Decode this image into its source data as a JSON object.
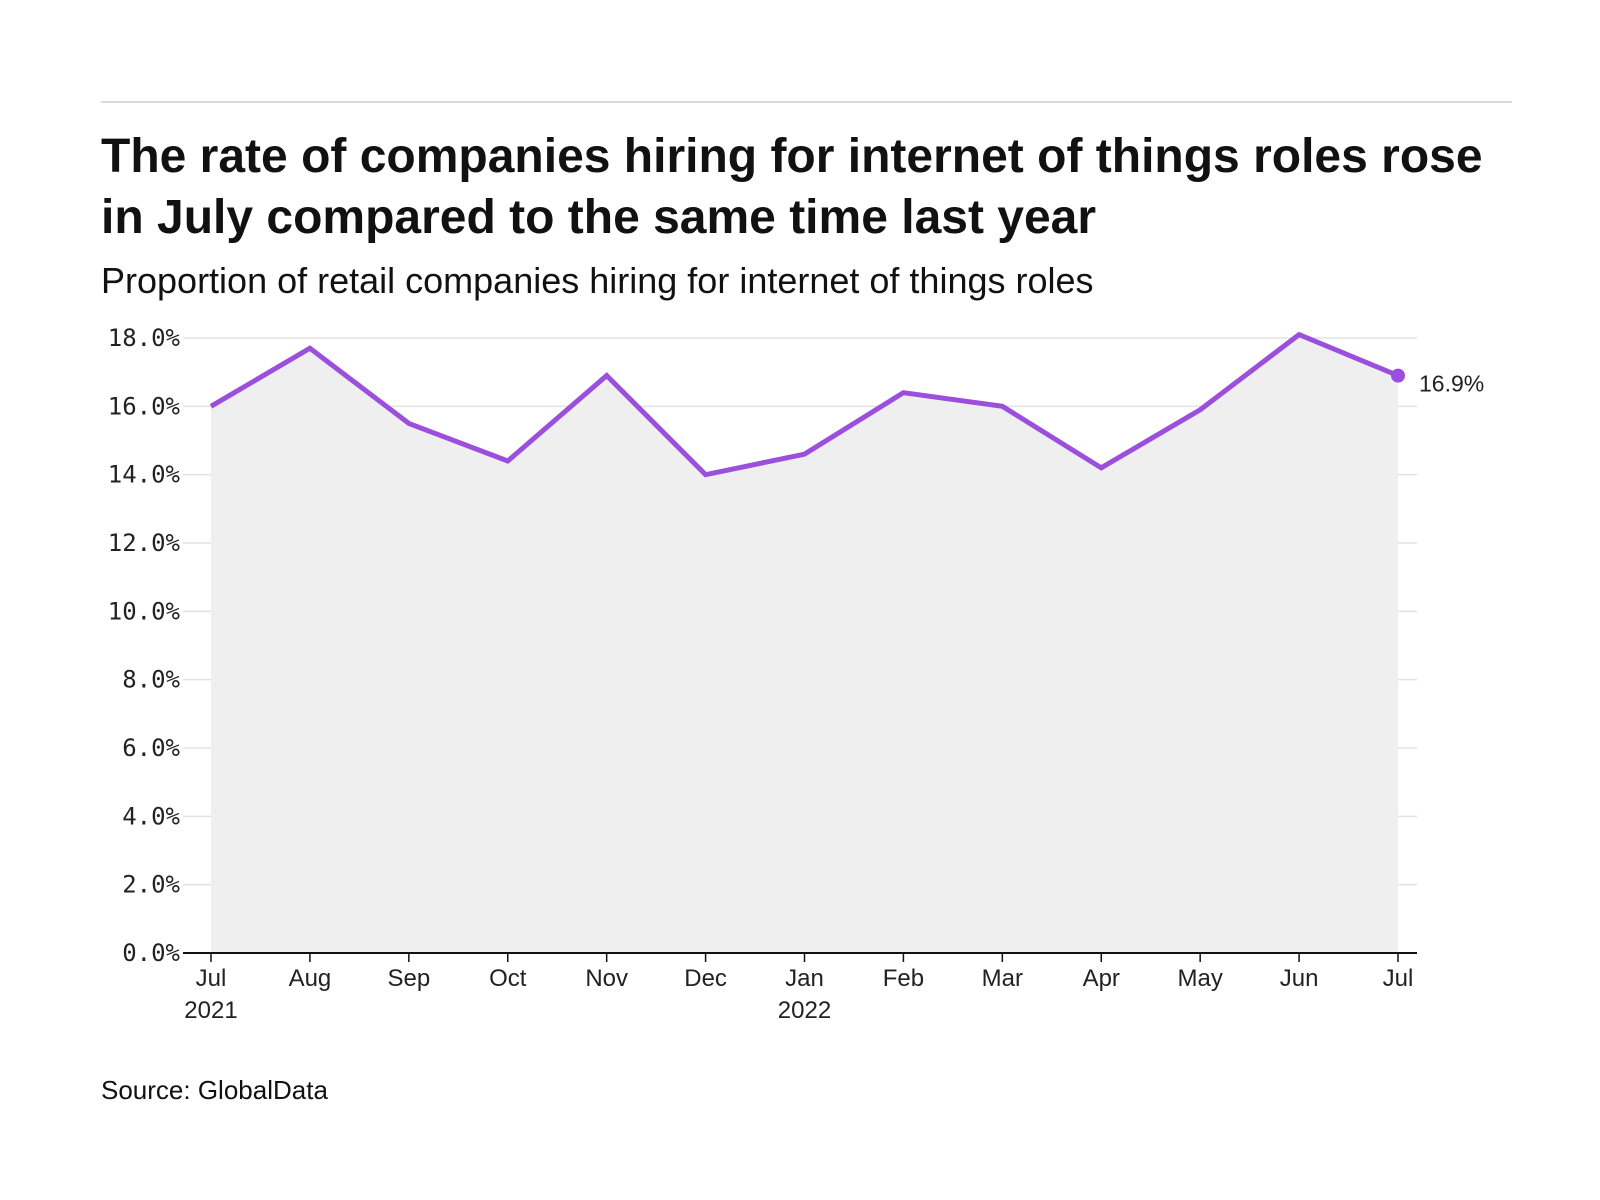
{
  "title": "The rate of companies hiring for internet of things roles rose in July compared to the same time last year",
  "subtitle": "Proportion of retail companies hiring for internet of things roles",
  "source": "Source: GlobalData",
  "colors": {
    "line": "#9b4fdc",
    "area": "#efefef",
    "grid": "#e2e2e2",
    "axis": "#111111"
  },
  "chart_data": {
    "type": "area",
    "x_tick_labels": [
      [
        "Jul",
        "2021"
      ],
      [
        "Aug"
      ],
      [
        "Sep"
      ],
      [
        "Oct"
      ],
      [
        "Nov"
      ],
      [
        "Dec"
      ],
      [
        "Jan",
        "2022"
      ],
      [
        "Feb"
      ],
      [
        "Mar"
      ],
      [
        "Apr"
      ],
      [
        "May"
      ],
      [
        "Jun"
      ],
      [
        "Jul"
      ]
    ],
    "series": [
      {
        "values": [
          16.0,
          17.7,
          15.5,
          14.4,
          16.9,
          14.0,
          14.6,
          16.4,
          16.0,
          14.2,
          15.9,
          18.1,
          16.9
        ]
      }
    ],
    "end_label": "16.9%",
    "ylim": [
      0,
      18
    ],
    "y_ticks": [
      0,
      2,
      4,
      6,
      8,
      10,
      12,
      14,
      16,
      18
    ],
    "y_tick_labels": [
      "0.0%",
      "2.0%",
      "4.0%",
      "6.0%",
      "8.0%",
      "10.0%",
      "12.0%",
      "14.0%",
      "16.0%",
      "18.0%"
    ],
    "grid": true,
    "legend": "none"
  }
}
